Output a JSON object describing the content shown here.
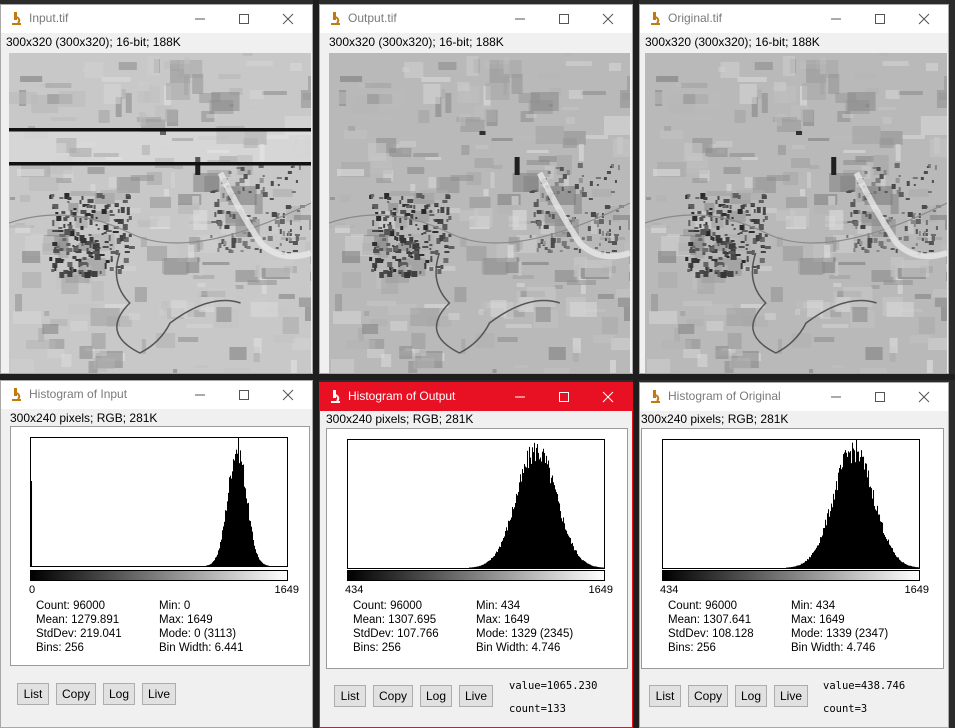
{
  "image_windows": [
    {
      "title": "Input.tif",
      "info": "300x320   (300x320); 16-bit; 188K"
    },
    {
      "title": "Output.tif",
      "info": "300x320   (300x320); 16-bit; 188K"
    },
    {
      "title": "Original.tif",
      "info": "300x320   (300x320); 16-bit; 188K"
    }
  ],
  "hist_windows": [
    {
      "title": "Histogram of Input",
      "info": "300x240 pixels; RGB; 281K",
      "lut_min": "0",
      "lut_max": "1649",
      "count": "Count: 96000",
      "mean": "Mean: 1279.891",
      "stddev": "StdDev: 219.041",
      "bins": "Bins: 256",
      "min": "Min: 0",
      "max": "Max: 1649",
      "mode": "Mode: 0 (3113)",
      "binwidth": "Bin Width: 6.441",
      "value": "",
      "count_readout": ""
    },
    {
      "title": "Histogram of Output",
      "info": "300x240 pixels; RGB; 281K",
      "lut_min": "434",
      "lut_max": "1649",
      "count": "Count: 96000",
      "mean": "Mean: 1307.695",
      "stddev": "StdDev: 107.766",
      "bins": "Bins: 256",
      "min": "Min: 434",
      "max": "Max: 1649",
      "mode": "Mode: 1329 (2345)",
      "binwidth": "Bin Width: 4.746",
      "value": "value=1065.230",
      "count_readout": "count=133"
    },
    {
      "title": "Histogram of Original",
      "info": "300x240 pixels; RGB; 281K",
      "lut_min": "434",
      "lut_max": "1649",
      "count": "Count: 96000",
      "mean": "Mean: 1307.641",
      "stddev": "StdDev: 108.128",
      "bins": "Bins: 256",
      "min": "Min: 434",
      "max": "Max: 1649",
      "mode": "Mode: 1339 (2347)",
      "binwidth": "Bin Width: 4.746",
      "value": "value=438.746",
      "count_readout": "count=3"
    }
  ],
  "buttons": {
    "list": "List",
    "copy": "Copy",
    "log": "Log",
    "live": "Live"
  },
  "colors": {
    "active_title": "#e81123",
    "window_bg": "#f0f0f0",
    "plot_bars": "#000000"
  },
  "icons": {
    "app": "imagej-microscope-icon",
    "minimize": "minimize-icon",
    "maximize": "maximize-icon",
    "close": "close-icon"
  },
  "chart_data": [
    {
      "type": "bar",
      "xlim": [
        0,
        1649
      ],
      "peak_value": 1329,
      "mode_value": 0,
      "mode_count": 3113,
      "bins": 256
    },
    {
      "type": "bar",
      "xlim": [
        434,
        1649
      ],
      "peak_value": 1329,
      "mode_count": 2345,
      "bins": 256
    },
    {
      "type": "bar",
      "xlim": [
        434,
        1649
      ],
      "peak_value": 1339,
      "mode_count": 2347,
      "bins": 256
    }
  ]
}
